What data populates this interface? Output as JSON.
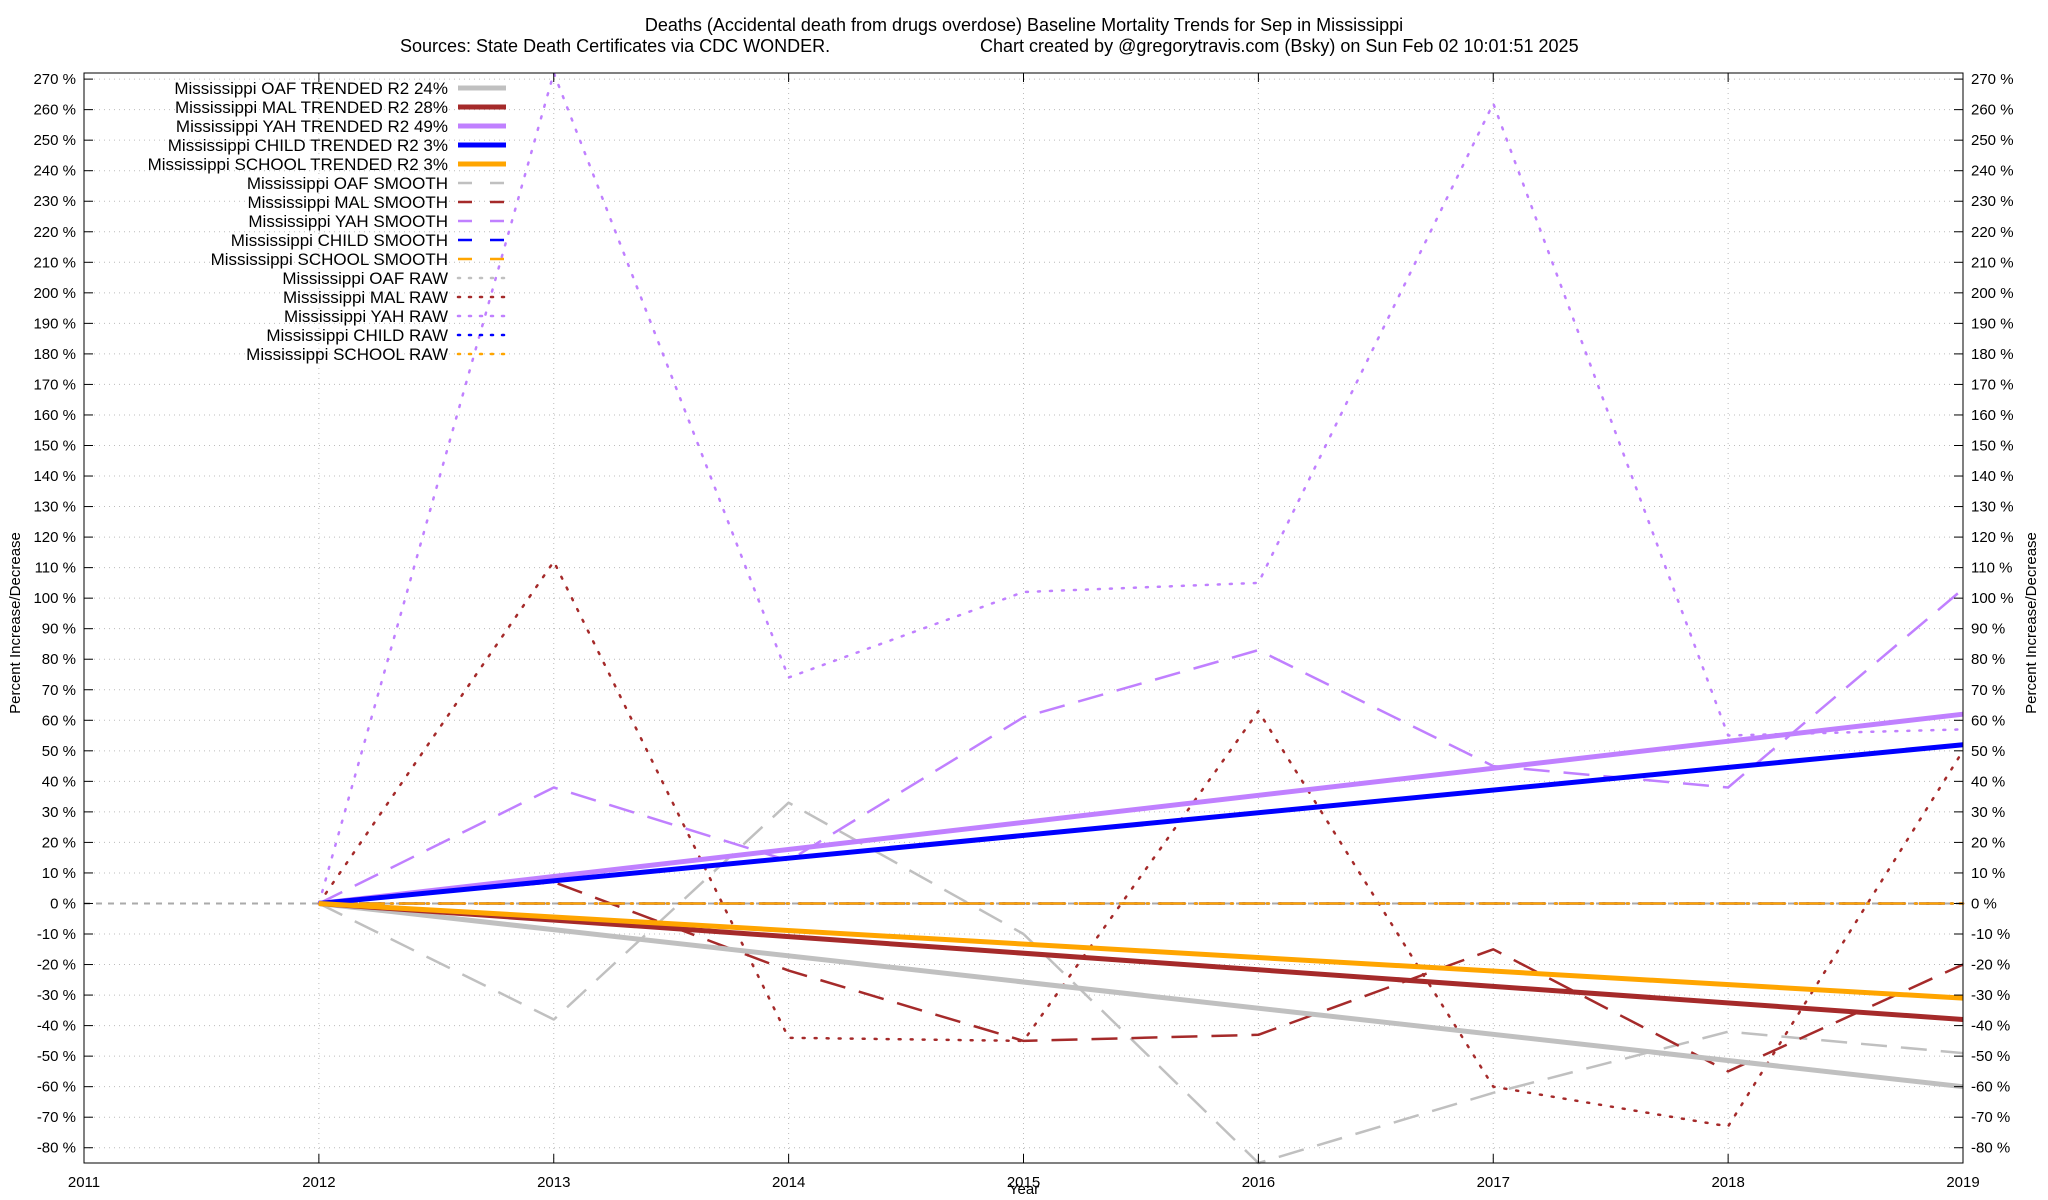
{
  "chart_data": {
    "type": "line",
    "title": "Deaths (Accidental death from drugs overdose)  Baseline Mortality Trends for Sep in Mississippi",
    "subtitle_left": "Sources: State Death Certificates via CDC WONDER.",
    "subtitle_right": "Chart created by @gregorytravis.com (Bsky) on Sun Feb 02 10:01:51 2025",
    "xlabel": "Year",
    "ylabel": "Percent Increase/Decrease",
    "xlim": [
      2011,
      2019
    ],
    "ylim": [
      -85,
      272
    ],
    "x_ticks": [
      "2011",
      "2012",
      "2013",
      "2014",
      "2015",
      "2016",
      "2017",
      "2018",
      "2019"
    ],
    "y_ticks": [
      "-80 %",
      "-70 %",
      "-60 %",
      "-50 %",
      "-40 %",
      "-30 %",
      "-20 %",
      "-10 %",
      "0 %",
      "10 %",
      "20 %",
      "30 %",
      "40 %",
      "50 %",
      "60 %",
      "70 %",
      "80 %",
      "90 %",
      "100 %",
      "110 %",
      "120 %",
      "130 %",
      "140 %",
      "150 %",
      "160 %",
      "170 %",
      "180 %",
      "190 %",
      "200 %",
      "210 %",
      "220 %",
      "230 %",
      "240 %",
      "250 %",
      "260 %",
      "270 %"
    ],
    "grid": true,
    "legend_position": "top-left",
    "series": [
      {
        "name": "Mississippi OAF TRENDED R2  24%",
        "style": "solid",
        "width": 5,
        "color": "#c0c0c0",
        "x": [
          2012,
          2019
        ],
        "y": [
          0,
          -60
        ]
      },
      {
        "name": "Mississippi MAL TRENDED R2  28%",
        "style": "solid",
        "width": 5,
        "color": "#a52a2a",
        "x": [
          2012,
          2019
        ],
        "y": [
          0,
          -38
        ]
      },
      {
        "name": "Mississippi YAH TRENDED R2  49%",
        "style": "solid",
        "width": 5,
        "color": "#c080ff",
        "x": [
          2012,
          2019
        ],
        "y": [
          0,
          62
        ]
      },
      {
        "name": "Mississippi CHILD TRENDED R2   3%",
        "style": "solid",
        "width": 5,
        "color": "#0000ff",
        "x": [
          2012,
          2019
        ],
        "y": [
          0,
          52
        ]
      },
      {
        "name": "Mississippi SCHOOL TRENDED R2   3%",
        "style": "solid",
        "width": 5,
        "color": "#ffa500",
        "x": [
          2012,
          2019
        ],
        "y": [
          0,
          -31
        ]
      },
      {
        "name": "Mississippi OAF SMOOTH",
        "style": "dash",
        "width": 2.5,
        "color": "#c0c0c0",
        "x": [
          2012,
          2013,
          2014,
          2015,
          2016,
          2017,
          2018,
          2019
        ],
        "y": [
          0,
          -38,
          33,
          -10,
          -85,
          -62,
          -42,
          -49
        ]
      },
      {
        "name": "Mississippi MAL SMOOTH",
        "style": "dash",
        "width": 2.5,
        "color": "#a52a2a",
        "x": [
          2012,
          2013,
          2014,
          2015,
          2016,
          2017,
          2018,
          2019
        ],
        "y": [
          0,
          7,
          -22,
          -45,
          -43,
          -15,
          -55,
          -20
        ]
      },
      {
        "name": "Mississippi YAH SMOOTH",
        "style": "dash",
        "width": 2.5,
        "color": "#c080ff",
        "x": [
          2012,
          2013,
          2014,
          2015,
          2016,
          2017,
          2018,
          2019
        ],
        "y": [
          0,
          38,
          14,
          61,
          83,
          45,
          38,
          103
        ]
      },
      {
        "name": "Mississippi CHILD SMOOTH",
        "style": "dash",
        "width": 2.5,
        "color": "#0000ff",
        "x": [
          2012,
          2013,
          2014,
          2015,
          2016,
          2017,
          2018,
          2019
        ],
        "y": [
          0,
          0,
          0,
          0,
          0,
          0,
          0,
          0
        ]
      },
      {
        "name": "Mississippi SCHOOL SMOOTH",
        "style": "dash",
        "width": 2.5,
        "color": "#ffa500",
        "x": [
          2012,
          2013,
          2014,
          2015,
          2016,
          2017,
          2018,
          2019
        ],
        "y": [
          0,
          0,
          0,
          0,
          0,
          0,
          0,
          0
        ]
      },
      {
        "name": "Mississippi OAF RAW",
        "style": "dot",
        "width": 2.5,
        "color": "#c0c0c0",
        "x": [
          2012,
          2013,
          2014,
          2015,
          2016,
          2017,
          2018,
          2019
        ],
        "y": [
          0,
          0,
          0,
          0,
          0,
          0,
          0,
          0
        ]
      },
      {
        "name": "Mississippi MAL RAW",
        "style": "dot",
        "width": 2.5,
        "color": "#a52a2a",
        "x": [
          2012,
          2013,
          2014,
          2015,
          2016,
          2017,
          2018,
          2019
        ],
        "y": [
          0,
          112,
          -44,
          -45,
          63,
          -60,
          -73,
          50
        ]
      },
      {
        "name": "Mississippi YAH RAW",
        "style": "dot",
        "width": 2.5,
        "color": "#c080ff",
        "x": [
          2012,
          2013,
          2014,
          2015,
          2016,
          2017,
          2018,
          2019
        ],
        "y": [
          0,
          275,
          74,
          102,
          105,
          262,
          55,
          57
        ]
      },
      {
        "name": "Mississippi CHILD RAW",
        "style": "dot",
        "width": 2.5,
        "color": "#0000ff",
        "x": [
          2012,
          2013,
          2014,
          2015,
          2016,
          2017,
          2018,
          2019
        ],
        "y": [
          0,
          0,
          0,
          0,
          0,
          0,
          0,
          0
        ]
      },
      {
        "name": "Mississippi SCHOOL RAW",
        "style": "dot",
        "width": 2.5,
        "color": "#ffa500",
        "x": [
          2012,
          2013,
          2014,
          2015,
          2016,
          2017,
          2018,
          2019
        ],
        "y": [
          0,
          0,
          0,
          0,
          0,
          0,
          0,
          0
        ]
      }
    ]
  }
}
